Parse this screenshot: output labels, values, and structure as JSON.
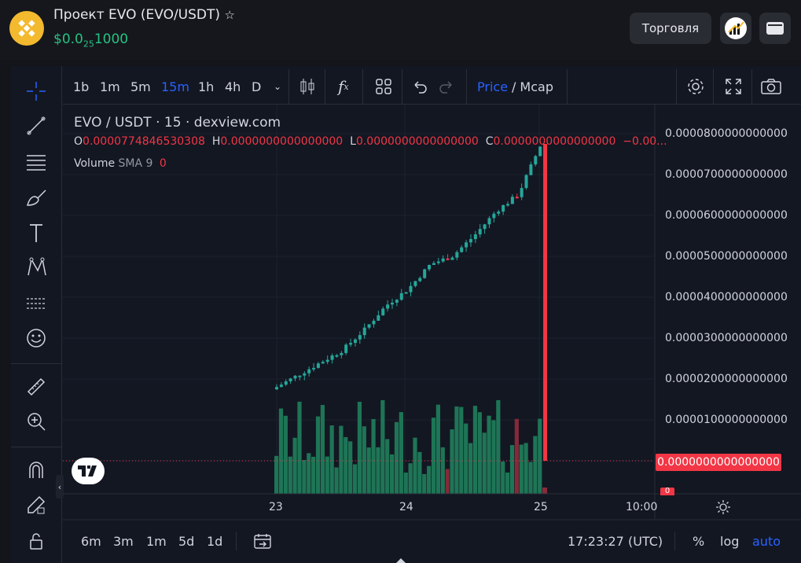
{
  "header": {
    "title": "Проект EVO (EVO/USDT)",
    "price_prefix": "$0.0",
    "price_zeros": "25",
    "price_digits": "1000",
    "trade_label": "Торговля"
  },
  "timeframes": [
    "1b",
    "1m",
    "5m",
    "15m",
    "1h",
    "4h",
    "D"
  ],
  "active_timeframe": "15m",
  "price_mcap": {
    "price": "Price",
    "sep": "/",
    "mcap": "Mcap"
  },
  "legend": {
    "symbol": "EVO / USDT · 15 · dexview.com"
  },
  "ohlc": {
    "o_label": "O",
    "o_val": "0.0000774846530308",
    "h_label": "H",
    "h_val": "0.0000000000000000",
    "l_label": "L",
    "l_val": "0.0000000000000000",
    "c_label": "C",
    "c_val": "0.0000000000000000",
    "chg": "−0.00..."
  },
  "volume": {
    "label": "Volume",
    "sma": "SMA 9",
    "value": "0"
  },
  "price_axis": [
    "0.0000800000000000",
    "0.0000700000000000",
    "0.0000600000000000",
    "0.0000500000000000",
    "0.0000400000000000",
    "0.0000300000000000",
    "0.0000200000000000",
    "0.0000100000000000"
  ],
  "current_price_label": "0.0000000000000000",
  "volume_axis_label": "0",
  "time_axis": [
    "23",
    "24",
    "25",
    "10:00"
  ],
  "ranges": [
    "6m",
    "3m",
    "1m",
    "5d",
    "1d"
  ],
  "clock": "17:23:27 (UTC)",
  "scale_opts": {
    "pct": "%",
    "log": "log",
    "auto": "auto"
  },
  "colors": {
    "up": "#26a69a",
    "down": "#f23645",
    "accent": "#2962ff",
    "price_green": "#26c281"
  },
  "chart_data": {
    "type": "candlestick",
    "x": [
      "23",
      "24",
      "25"
    ],
    "price_close_path": [
      1.8e-05,
      2.1e-05,
      2.4e-05,
      2.7e-05,
      3.2e-05,
      3.8e-05,
      4.2e-05,
      4.8e-05,
      5e-05,
      5.5e-05,
      6.1e-05,
      6.5e-05,
      7.7e-05,
      0
    ],
    "ylim": [
      0,
      8e-05
    ]
  }
}
